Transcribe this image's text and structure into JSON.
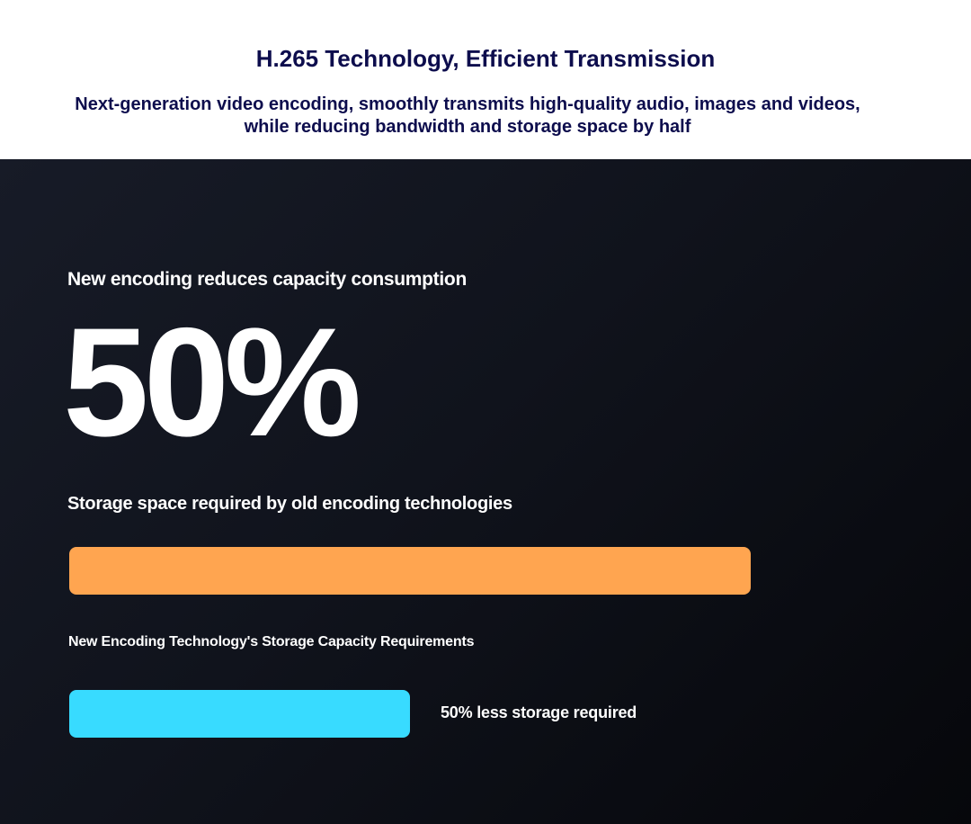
{
  "header": {
    "title": "H.265 Technology, Efficient Transmission",
    "subtitle": "Next-generation video encoding, smoothly transmits high-quality audio, images and videos, while reducing bandwidth and storage space by half"
  },
  "main": {
    "lead": "New encoding reduces capacity consumption",
    "big_value": "50%",
    "old_label": "Storage space required by old encoding technologies",
    "new_label": "New Encoding Technology's Storage Capacity Requirements",
    "note": "50% less storage required"
  },
  "chart_data": {
    "type": "bar",
    "orientation": "horizontal",
    "categories": [
      "Storage space required by old encoding technologies",
      "New Encoding Technology's Storage Capacity Requirements"
    ],
    "values": [
      100,
      50
    ],
    "unit": "%",
    "colors": [
      "#ffa550",
      "#38dbff"
    ]
  }
}
